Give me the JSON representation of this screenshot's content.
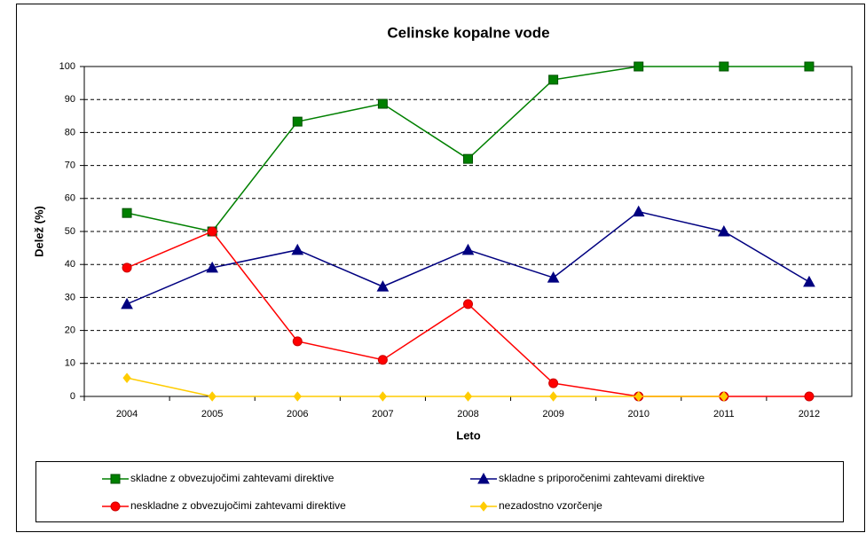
{
  "chart_data": {
    "type": "line",
    "title": "Celinske kopalne vode",
    "xlabel": "Leto",
    "ylabel": "Delež (%)",
    "categories": [
      "2004",
      "2005",
      "2006",
      "2007",
      "2008",
      "2009",
      "2010",
      "2011",
      "2012"
    ],
    "ylim": [
      0,
      100
    ],
    "yticks": [
      0,
      10,
      20,
      30,
      40,
      50,
      60,
      70,
      80,
      90,
      100
    ],
    "grid": true,
    "legend": "bottom",
    "series": [
      {
        "name": "skladne z obvezujočimi zahtevami direktive",
        "color": "#008000",
        "marker": "square",
        "values": [
          55.6,
          50,
          83.3,
          88.7,
          72,
          96,
          100,
          100,
          100
        ]
      },
      {
        "name": "skladne s priporočenimi zahtevami direktive",
        "color": "#000080",
        "marker": "triangle",
        "values": [
          28,
          39,
          44.4,
          33.3,
          44.4,
          36,
          56,
          50,
          34.7
        ]
      },
      {
        "name": "neskladne z obvezujočimi zahtevami direktive",
        "color": "#ff0000",
        "marker": "circle",
        "values": [
          39,
          50,
          16.7,
          11.1,
          28,
          4,
          0,
          0,
          0
        ]
      },
      {
        "name": "nezadostno vzorčenje",
        "color": "#ffcc00",
        "marker": "diamond",
        "values": [
          5.6,
          0,
          0,
          0,
          0,
          0,
          0,
          0,
          null
        ]
      }
    ]
  }
}
